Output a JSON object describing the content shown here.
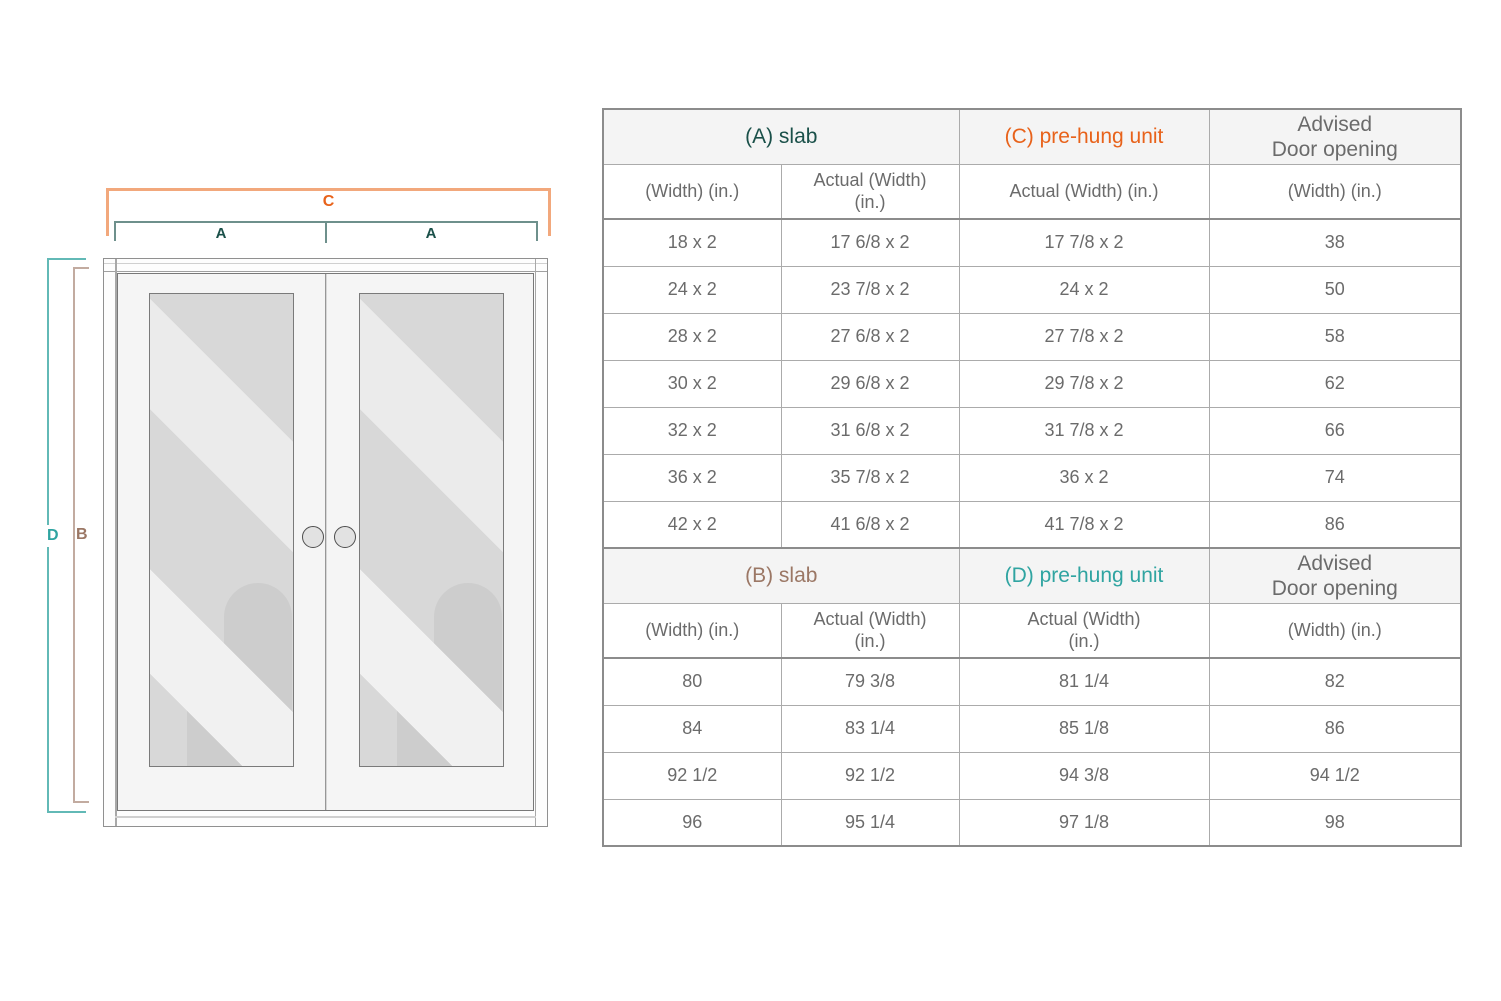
{
  "diagram": {
    "bracket_c_label": "C",
    "bracket_a_left_label": "A",
    "bracket_a_right_label": "A",
    "bracket_d_label": "D",
    "bracket_b_label": "B",
    "colors": {
      "c_orange": "#E8621A",
      "a_dark_green": "#1A5049",
      "d_teal": "#2FA4A1",
      "b_brown": "#9B7765"
    }
  },
  "table": {
    "accent_colors": {
      "slab_a": "#1A5049",
      "prehung_c": "#E8621A",
      "slab_b": "#9B7765",
      "prehung_d": "#2FA4A1",
      "body_text": "#6B6B6B",
      "header_bg": "#F4F4F4"
    },
    "section_a": {
      "title_slab": "(A) slab",
      "title_prehung": "(C) pre-hung unit",
      "title_advised": "Advised\nDoor opening",
      "subheaders": [
        "(Width) (in.)",
        "Actual (Width)\n(in.)",
        "Actual (Width) (in.)",
        "(Width) (in.)"
      ],
      "rows": [
        [
          "18 x 2",
          "17 6/8 x 2",
          "17 7/8 x 2",
          "38"
        ],
        [
          "24 x 2",
          "23 7/8 x 2",
          "24 x 2",
          "50"
        ],
        [
          "28 x 2",
          "27 6/8 x 2",
          "27 7/8 x 2",
          "58"
        ],
        [
          "30 x 2",
          "29 6/8 x 2",
          "29 7/8 x 2",
          "62"
        ],
        [
          "32 x 2",
          "31 6/8 x 2",
          "31 7/8 x 2",
          "66"
        ],
        [
          "36 x 2",
          "35 7/8 x 2",
          "36 x 2",
          "74"
        ],
        [
          "42 x 2",
          "41 6/8 x 2",
          "41 7/8 x 2",
          "86"
        ]
      ]
    },
    "section_b": {
      "title_slab": "(B) slab",
      "title_prehung": "(D) pre-hung unit",
      "title_advised": "Advised\nDoor opening",
      "subheaders": [
        "(Width) (in.)",
        "Actual (Width)\n(in.)",
        "Actual (Width)\n(in.)",
        "(Width) (in.)"
      ],
      "rows": [
        [
          "80",
          "79 3/8",
          "81 1/4",
          "82"
        ],
        [
          "84",
          "83 1/4",
          "85 1/8",
          "86"
        ],
        [
          "92 1/2",
          "92 1/2",
          "94 3/8",
          "94 1/2"
        ],
        [
          "96",
          "95 1/4",
          "97 1/8",
          "98"
        ]
      ]
    }
  }
}
